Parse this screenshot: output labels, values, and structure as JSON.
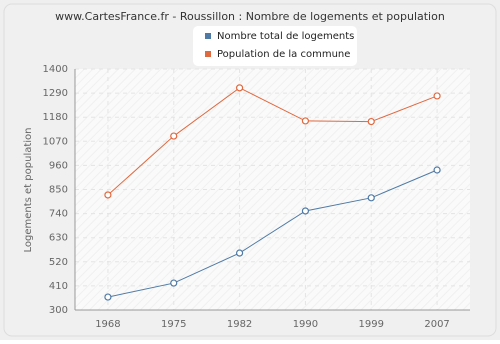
{
  "chart_data": {
    "type": "line",
    "title": "www.CartesFrance.fr - Roussillon : Nombre de logements et population",
    "y_label": "Logements et population",
    "categories": [
      "1968",
      "1975",
      "1982",
      "1990",
      "1999",
      "2007"
    ],
    "series": [
      {
        "name": "Nombre total de logements",
        "color": "#4f7aa6",
        "values": [
          359,
          423,
          560,
          752,
          812,
          939
        ]
      },
      {
        "name": "Population de la commune",
        "color": "#e0693f",
        "values": [
          825,
          1094,
          1314,
          1163,
          1160,
          1277
        ]
      }
    ],
    "ylim": [
      300,
      1400
    ],
    "yticks": [
      300,
      410,
      520,
      630,
      740,
      850,
      960,
      1070,
      1180,
      1290,
      1400
    ],
    "grid": true
  }
}
